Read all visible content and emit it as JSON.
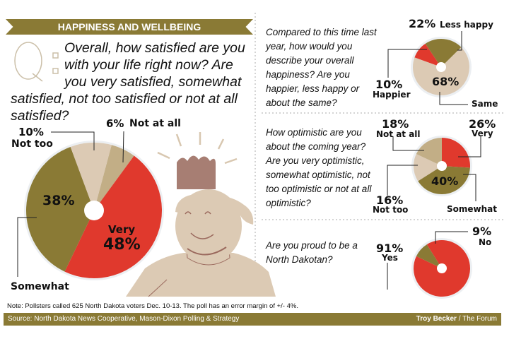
{
  "header": {
    "title": "HAPPINESS AND WELLBEING",
    "q_mark": "Q:"
  },
  "colors": {
    "olive": "#8a7a35",
    "red": "#e0392d",
    "beige": "#dccab4",
    "tan": "#c2ae86",
    "text": "#111111"
  },
  "chart_data": [
    {
      "type": "pie",
      "question": [
        "Overall, how satisfied are you",
        "with  your life right now? Are",
        "you very satisfied, somewhat",
        "satisfied, not too satisfied or not at all",
        "satisfied?"
      ],
      "slices": [
        {
          "label": "Not at all",
          "value": 6,
          "value_label": "6%",
          "color": "#c2ae86"
        },
        {
          "label": "Very",
          "value": 48,
          "value_label": "48%",
          "color": "#e0392d"
        },
        {
          "label": "Somewhat",
          "value": 38,
          "value_label": "38%",
          "color": "#8a7a35"
        },
        {
          "label": "Not too",
          "value": 10,
          "value_label": "10%",
          "color": "#dccab4"
        }
      ]
    },
    {
      "type": "pie",
      "question": "Compared to this time last year, how would you describe your overall happiness? Are you happier, less happy or about the same?",
      "slices": [
        {
          "label": "Happier",
          "value": 10,
          "value_label": "10%",
          "color": "#e0392d"
        },
        {
          "label": "Less happy",
          "value": 22,
          "value_label": "22%",
          "color": "#8a7a35"
        },
        {
          "label": "Same",
          "value": 68,
          "value_label": "68%",
          "color": "#dccab4"
        }
      ]
    },
    {
      "type": "pie",
      "question": "How optimistic are you about the coming year? Are you very optimistic, somewhat optimistic, not too optimistic or not at all optimistic?",
      "slices": [
        {
          "label": "Very",
          "value": 26,
          "value_label": "26%",
          "color": "#e0392d"
        },
        {
          "label": "Somewhat",
          "value": 40,
          "value_label": "40%",
          "color": "#8a7a35"
        },
        {
          "label": "Not too",
          "value": 16,
          "value_label": "16%",
          "color": "#dccab4"
        },
        {
          "label": "Not at all",
          "value": 18,
          "value_label": "18%",
          "color": "#c2ae86"
        }
      ]
    },
    {
      "type": "pie",
      "question": "Are you proud to be a North Dakotan?",
      "slices": [
        {
          "label": "Yes",
          "value": 91,
          "value_label": "91%",
          "color": "#e0392d"
        },
        {
          "label": "No",
          "value": 9,
          "value_label": "9%",
          "color": "#8a7a35"
        }
      ]
    }
  ],
  "footer": {
    "note": "Note: Pollsters called 625 North Dakota voters Dec. 10-13. The poll has an error margin of +/- 4%.",
    "source": "Source: North Dakota News Cooperative, Mason-Dixon Polling & Strategy",
    "credit_name": "Troy Becker",
    "credit_org": " / The Forum"
  }
}
